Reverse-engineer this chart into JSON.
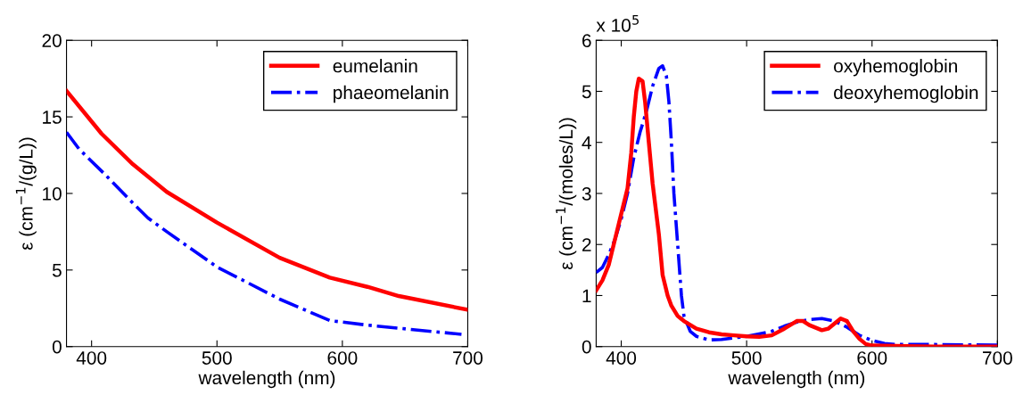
{
  "chart_data": [
    {
      "type": "line",
      "xlabel": "wavelength (nm)",
      "ylabel": "ε (cm$^{−1}$/(g/L))",
      "xlim": [
        380,
        700
      ],
      "xticks": [
        400,
        500,
        600,
        700
      ],
      "ylim": [
        0,
        20
      ],
      "yticks": [
        0,
        5,
        10,
        15,
        20
      ],
      "grid": false,
      "legend": "top right",
      "series": [
        {
          "name": "eumelanin",
          "color": "#ff0000",
          "line_style": "solid",
          "x": [
            380,
            408,
            433,
            460,
            500,
            550,
            590,
            620,
            645,
            700
          ],
          "values": [
            16.7,
            13.9,
            11.9,
            10.1,
            8.1,
            5.8,
            4.5,
            3.9,
            3.3,
            2.4
          ]
        },
        {
          "name": "phaeomelanin",
          "color": "#0000ff",
          "line_style": "dashdot",
          "x": [
            380,
            390,
            410,
            435,
            445,
            460,
            500,
            550,
            590,
            620,
            645,
            695
          ],
          "values": [
            14.0,
            12.9,
            11.3,
            9.2,
            8.4,
            7.5,
            5.2,
            3.1,
            1.7,
            1.4,
            1.2,
            0.8
          ]
        }
      ]
    },
    {
      "type": "line",
      "xlabel": "wavelength (nm)",
      "ylabel": "ε (cm$^{−1}$/(moles/L))",
      "xlim": [
        380,
        700
      ],
      "xticks": [
        400,
        500,
        600,
        700
      ],
      "ylim": [
        0,
        6
      ],
      "yticks": [
        0,
        1,
        2,
        3,
        4,
        5,
        6
      ],
      "grid": false,
      "legend": "top right",
      "annotations": [
        "x 10$^{5}$"
      ],
      "series": [
        {
          "name": "oxyhemoglobin",
          "color": "#ff0000",
          "line_style": "solid",
          "x": [
            380,
            385,
            390,
            395,
            400,
            405,
            408,
            410,
            412,
            414,
            417,
            419,
            422,
            425,
            430,
            433,
            437,
            440,
            445,
            450,
            460,
            470,
            480,
            490,
            500,
            510,
            520,
            530,
            540,
            545,
            550,
            560,
            565,
            570,
            575,
            580,
            585,
            590,
            595,
            600,
            650,
            700
          ],
          "values": [
            1.1,
            1.3,
            1.6,
            2.1,
            2.6,
            3.1,
            3.8,
            4.5,
            5.0,
            5.25,
            5.2,
            4.8,
            4.0,
            3.2,
            2.2,
            1.4,
            1.0,
            0.8,
            0.6,
            0.5,
            0.35,
            0.28,
            0.24,
            0.22,
            0.2,
            0.19,
            0.22,
            0.35,
            0.5,
            0.5,
            0.42,
            0.32,
            0.35,
            0.45,
            0.55,
            0.5,
            0.3,
            0.15,
            0.05,
            0.02,
            0.0,
            0.0
          ]
        },
        {
          "name": "deoxyhemoglobin",
          "color": "#0000ff",
          "line_style": "dashdot",
          "x": [
            380,
            385,
            390,
            395,
            400,
            405,
            410,
            415,
            420,
            425,
            430,
            433,
            436,
            438,
            440,
            442,
            445,
            448,
            450,
            455,
            460,
            470,
            480,
            490,
            500,
            510,
            520,
            530,
            540,
            550,
            560,
            570,
            580,
            590,
            600,
            610,
            620,
            650,
            700
          ],
          "values": [
            1.45,
            1.55,
            1.8,
            2.1,
            2.5,
            3.0,
            3.7,
            4.2,
            4.6,
            5.1,
            5.45,
            5.5,
            5.3,
            4.8,
            4.0,
            3.0,
            2.0,
            1.0,
            0.6,
            0.3,
            0.2,
            0.13,
            0.14,
            0.17,
            0.2,
            0.25,
            0.3,
            0.4,
            0.48,
            0.53,
            0.55,
            0.5,
            0.38,
            0.22,
            0.12,
            0.06,
            0.04,
            0.04,
            0.03
          ]
        }
      ]
    }
  ]
}
